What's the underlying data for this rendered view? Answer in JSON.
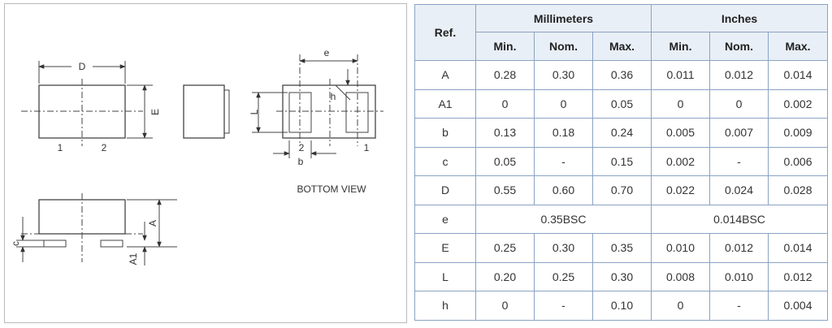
{
  "drawing": {
    "label_D": "D",
    "label_E": "E",
    "label_pin1": "1",
    "label_pin2": "2",
    "label_e": "e",
    "label_L": "L",
    "label_h": "h",
    "label_b": "b",
    "label_A": "A",
    "label_A1": "A1",
    "label_c": "c",
    "bottom_view": "BOTTOM VIEW"
  },
  "table": {
    "ref_header": "Ref.",
    "group_headers": [
      "Millimeters",
      "Inches"
    ],
    "sub_headers": [
      "Min.",
      "Nom.",
      "Max.",
      "Min.",
      "Nom.",
      "Max."
    ],
    "rows": [
      {
        "ref": "A",
        "cells": [
          "0.28",
          "0.30",
          "0.36",
          "0.011",
          "0.012",
          "0.014"
        ]
      },
      {
        "ref": "A1",
        "cells": [
          "0",
          "0",
          "0.05",
          "0",
          "0",
          "0.002"
        ]
      },
      {
        "ref": "b",
        "cells": [
          "0.13",
          "0.18",
          "0.24",
          "0.005",
          "0.007",
          "0.009"
        ]
      },
      {
        "ref": "c",
        "cells": [
          "0.05",
          "-",
          "0.15",
          "0.002",
          "-",
          "0.006"
        ]
      },
      {
        "ref": "D",
        "cells": [
          "0.55",
          "0.60",
          "0.70",
          "0.022",
          "0.024",
          "0.028"
        ]
      },
      {
        "ref": "e",
        "bsc": [
          "0.35BSC",
          "0.014BSC"
        ]
      },
      {
        "ref": "E",
        "cells": [
          "0.25",
          "0.30",
          "0.35",
          "0.010",
          "0.012",
          "0.014"
        ]
      },
      {
        "ref": "L",
        "cells": [
          "0.20",
          "0.25",
          "0.30",
          "0.008",
          "0.010",
          "0.012"
        ]
      },
      {
        "ref": "h",
        "cells": [
          "0",
          "-",
          "0.10",
          "0",
          "-",
          "0.004"
        ]
      }
    ]
  }
}
